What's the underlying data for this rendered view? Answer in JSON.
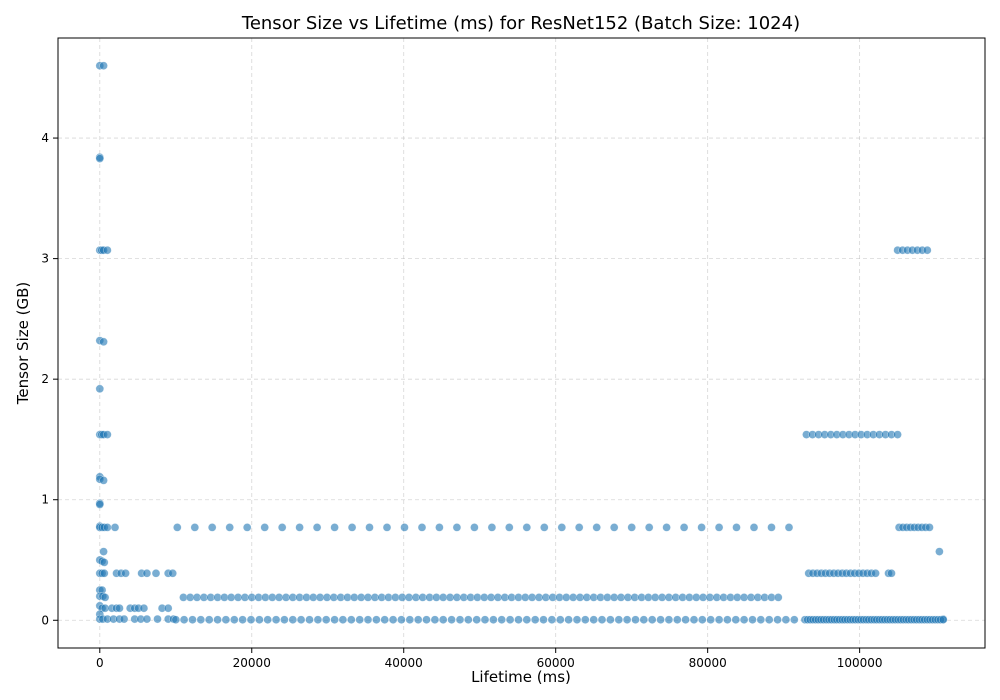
{
  "chart_data": {
    "type": "scatter",
    "title": "Tensor Size vs Lifetime (ms) for ResNet152 (Batch Size: 1024)",
    "xlabel": "Lifetime (ms)",
    "ylabel": "Tensor Size (GB)",
    "xlim": [
      -5500,
      116500
    ],
    "ylim": [
      -0.23,
      4.83
    ],
    "xticks": [
      0,
      20000,
      40000,
      60000,
      80000,
      100000
    ],
    "xtick_labels": [
      "0",
      "20000",
      "40000",
      "60000",
      "80000",
      "100000"
    ],
    "yticks": [
      0,
      1,
      2,
      3,
      4
    ],
    "ytick_labels": [
      "0",
      "1",
      "2",
      "3",
      "4"
    ],
    "grid": true,
    "marker_color": "#1f77b4",
    "marker_alpha": 0.6,
    "series": [
      {
        "points": [
          [
            0,
            4.6
          ],
          [
            500,
            4.6
          ],
          [
            0,
            3.84
          ],
          [
            0,
            3.83
          ],
          [
            0,
            3.07
          ],
          [
            250,
            3.07
          ],
          [
            500,
            3.07
          ],
          [
            1000,
            3.07
          ],
          [
            0,
            2.32
          ],
          [
            500,
            2.31
          ],
          [
            0,
            1.92
          ],
          [
            0,
            1.54
          ],
          [
            250,
            1.54
          ],
          [
            500,
            1.54
          ],
          [
            1000,
            1.54
          ],
          [
            0,
            1.19
          ],
          [
            0,
            1.17
          ],
          [
            500,
            1.16
          ],
          [
            0,
            0.97
          ],
          [
            0,
            0.96
          ],
          [
            0,
            0.78
          ],
          [
            0,
            0.77
          ],
          [
            300,
            0.77
          ],
          [
            600,
            0.77
          ],
          [
            1000,
            0.77
          ],
          [
            2000,
            0.77
          ],
          [
            500,
            0.57
          ],
          [
            0,
            0.5
          ],
          [
            300,
            0.49
          ],
          [
            600,
            0.48
          ],
          [
            0,
            0.39
          ],
          [
            300,
            0.39
          ],
          [
            600,
            0.39
          ],
          [
            2200,
            0.39
          ],
          [
            2800,
            0.39
          ],
          [
            3400,
            0.39
          ],
          [
            5500,
            0.39
          ],
          [
            6200,
            0.39
          ],
          [
            7400,
            0.39
          ],
          [
            9000,
            0.39
          ],
          [
            9600,
            0.39
          ],
          [
            0,
            0.25
          ],
          [
            300,
            0.25
          ],
          [
            0,
            0.2
          ],
          [
            400,
            0.2
          ],
          [
            700,
            0.19
          ],
          [
            0,
            0.12
          ],
          [
            300,
            0.1
          ],
          [
            700,
            0.1
          ],
          [
            1600,
            0.1
          ],
          [
            2200,
            0.1
          ],
          [
            2600,
            0.1
          ],
          [
            4000,
            0.1
          ],
          [
            4600,
            0.1
          ],
          [
            5100,
            0.1
          ],
          [
            5800,
            0.1
          ],
          [
            8200,
            0.1
          ],
          [
            9000,
            0.1
          ],
          [
            0,
            0.05
          ],
          [
            0,
            0.01
          ],
          [
            400,
            0.01
          ],
          [
            1000,
            0.01
          ],
          [
            1800,
            0.01
          ],
          [
            2600,
            0.01
          ],
          [
            3200,
            0.01
          ],
          [
            4600,
            0.01
          ],
          [
            5400,
            0.01
          ],
          [
            6200,
            0.01
          ],
          [
            7600,
            0.01
          ],
          [
            9000,
            0.01
          ],
          [
            9700,
            0.01
          ],
          [
            110500,
            0.57
          ],
          [
            111000,
            0.01
          ]
        ],
        "bands": [
          {
            "y": 0.77,
            "x_start": 10200,
            "x_end": 92000,
            "step": 2300
          },
          {
            "y": 0.19,
            "x_start": 11000,
            "x_end": 90000,
            "step": 900
          },
          {
            "y": 0.005,
            "x_start": 10000,
            "x_end": 92000,
            "step": 1100
          },
          {
            "y": 1.54,
            "x_start": 93000,
            "x_end": 105000,
            "step": 800
          },
          {
            "y": 0.39,
            "x_start": 93300,
            "x_end": 102500,
            "step": 550
          },
          {
            "y": 0.39,
            "x_start": 103800,
            "x_end": 104200,
            "step": 400
          },
          {
            "y": 0.005,
            "x_start": 92800,
            "x_end": 111000,
            "step": 350
          },
          {
            "y": 3.07,
            "x_start": 105000,
            "x_end": 109500,
            "step": 650
          },
          {
            "y": 0.77,
            "x_start": 105200,
            "x_end": 109500,
            "step": 500
          }
        ]
      }
    ]
  }
}
